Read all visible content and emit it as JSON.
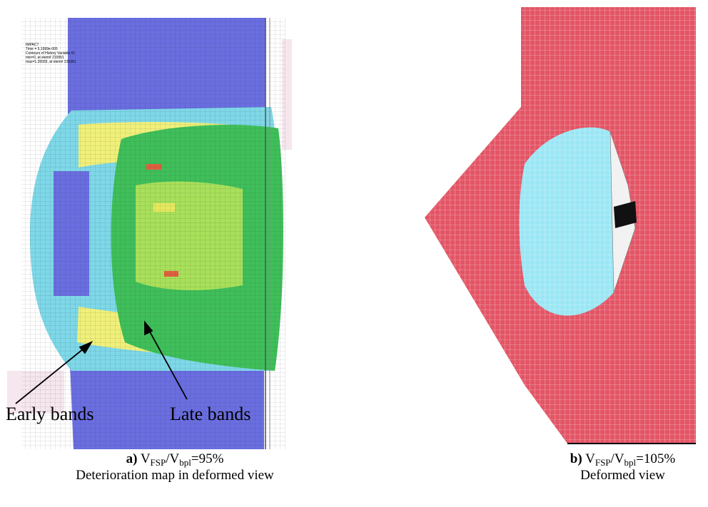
{
  "panels": [
    {
      "annotation_lines": [
        "IMPACT",
        "Time = 5.1999e-005",
        "Contours of History Variable #1",
        "min=0, at elem# 210051",
        "max=1.35555, at elem# 225391"
      ],
      "callouts": [
        "Early bands",
        "Late bands"
      ],
      "caption": {
        "label": "a)",
        "v1": "V",
        "sub1": "FSP",
        "v2": "/V",
        "sub2": "bpl",
        "ratio": "=95%",
        "description": "Deterioration map in deformed view"
      }
    },
    {
      "caption": {
        "label": "b)",
        "v1": "V",
        "sub1": "FSP",
        "v2": "/V",
        "sub2": "bpl",
        "ratio": "=105%",
        "description": "Deformed view"
      }
    }
  ]
}
